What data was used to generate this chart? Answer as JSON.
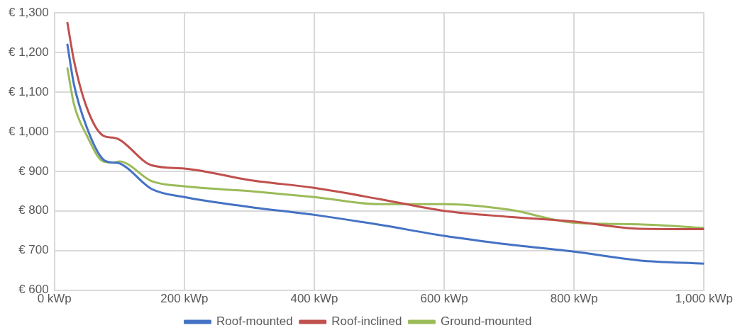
{
  "chart_data": {
    "type": "line",
    "x": [
      20,
      30,
      50,
      75,
      90,
      100,
      150,
      200,
      300,
      400,
      500,
      600,
      700,
      800,
      900,
      1000
    ],
    "series": [
      {
        "name": "Roof-mounted",
        "color": "#4472c4",
        "values": [
          1220,
          1120,
          1010,
          930,
          922,
          920,
          855,
          835,
          810,
          790,
          765,
          737,
          715,
          697,
          675,
          667
        ]
      },
      {
        "name": "Roof-inclined",
        "color": "#c0504d",
        "values": [
          1275,
          1180,
          1060,
          990,
          985,
          980,
          915,
          907,
          878,
          858,
          830,
          800,
          785,
          773,
          755,
          754
        ]
      },
      {
        "name": "Ground-mounted",
        "color": "#9bbb59",
        "values": [
          1160,
          1070,
          990,
          925,
          922,
          925,
          875,
          862,
          850,
          835,
          817,
          817,
          803,
          770,
          766,
          757
        ]
      }
    ],
    "xlim": [
      0,
      1000
    ],
    "xticks": [
      {
        "value": 0,
        "label": "0 kWp"
      },
      {
        "value": 200,
        "label": "200 kWp"
      },
      {
        "value": 400,
        "label": "400 kWp"
      },
      {
        "value": 600,
        "label": "600 kWp"
      },
      {
        "value": 800,
        "label": "800 kWp"
      },
      {
        "value": 1000,
        "label": "1,000 kWp"
      }
    ],
    "ylim": [
      600,
      1300
    ],
    "yticks": [
      {
        "value": 600,
        "label": "€ 600"
      },
      {
        "value": 700,
        "label": "€ 700"
      },
      {
        "value": 800,
        "label": "€ 800"
      },
      {
        "value": 900,
        "label": "€ 900"
      },
      {
        "value": 1000,
        "label": "€ 1,000"
      },
      {
        "value": 1100,
        "label": "€ 1,100"
      },
      {
        "value": 1200,
        "label": "€ 1,200"
      },
      {
        "value": 1300,
        "label": "€ 1,300"
      }
    ],
    "grid": true,
    "legend": "bottom",
    "marker": "none",
    "line_style": "solid"
  }
}
